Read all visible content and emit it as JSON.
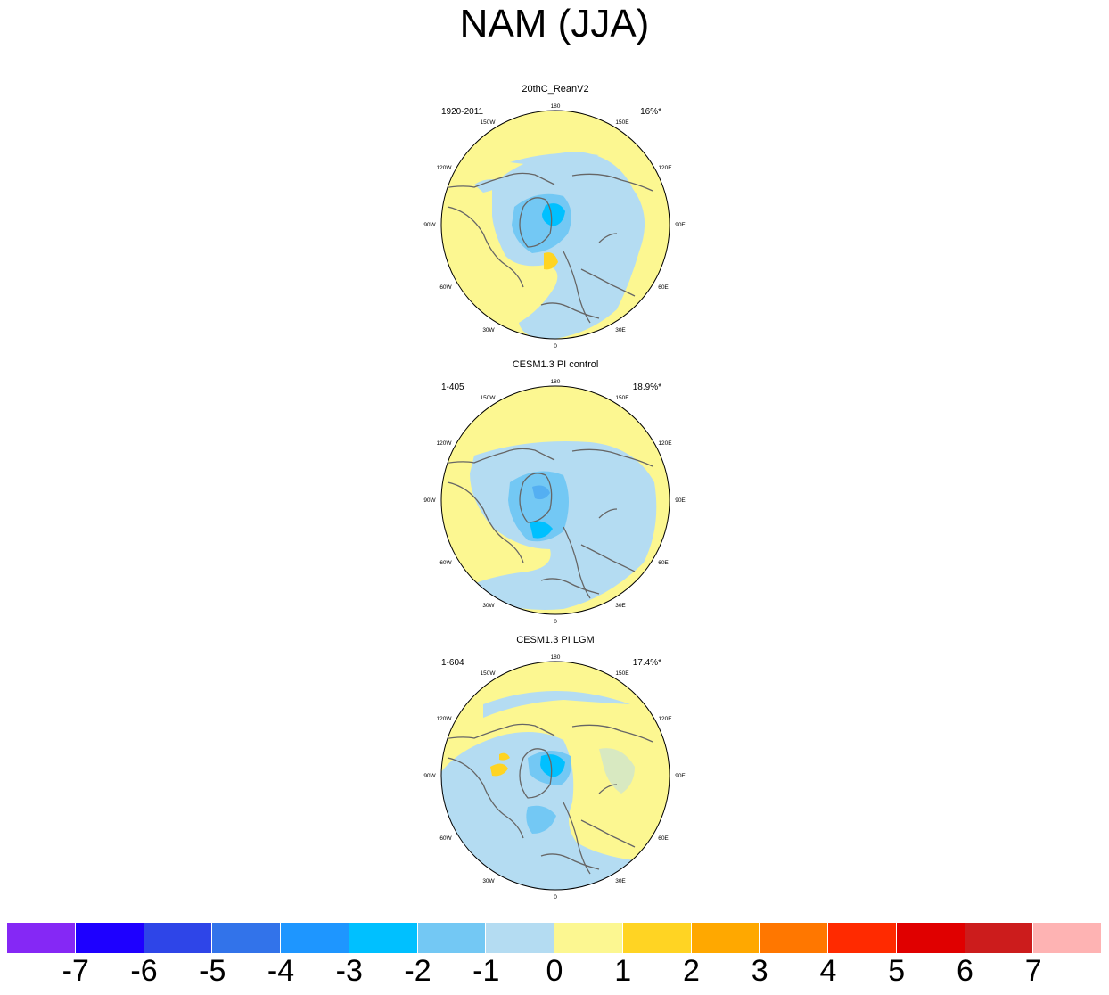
{
  "title": "NAM (JJA)",
  "panels": [
    {
      "title": "20thC_ReanV2",
      "period": "1920-2011",
      "pct": "16%*"
    },
    {
      "title": "CESM1.3 PI control",
      "period": "1-405",
      "pct": "18.9%*"
    },
    {
      "title": "CESM1.3 PI LGM",
      "period": "1-604",
      "pct": "17.4%*"
    }
  ],
  "lon_labels": {
    "top": "180",
    "bottom": "0",
    "left": "90W",
    "right": "90E",
    "nw": "150W",
    "ne": "150E",
    "wnw": "120W",
    "ene": "120E",
    "wsw": "60W",
    "ese": "60E",
    "sw": "30W",
    "se": "30E"
  },
  "colorbar": {
    "colors": [
      "#8528f5",
      "#1e00ff",
      "#2e45e8",
      "#3273ea",
      "#1e96ff",
      "#00c0ff",
      "#73c8f4",
      "#b4dcf2",
      "#fcf791",
      "#ffd423",
      "#ffa800",
      "#ff7700",
      "#ff2a00",
      "#e00000",
      "#cc1c1c",
      "#feb3b3"
    ],
    "labels": [
      "-7",
      "-6",
      "-5",
      "-4",
      "-3",
      "-2",
      "-1",
      "0",
      "1",
      "2",
      "3",
      "4",
      "5",
      "6",
      "7"
    ]
  }
}
